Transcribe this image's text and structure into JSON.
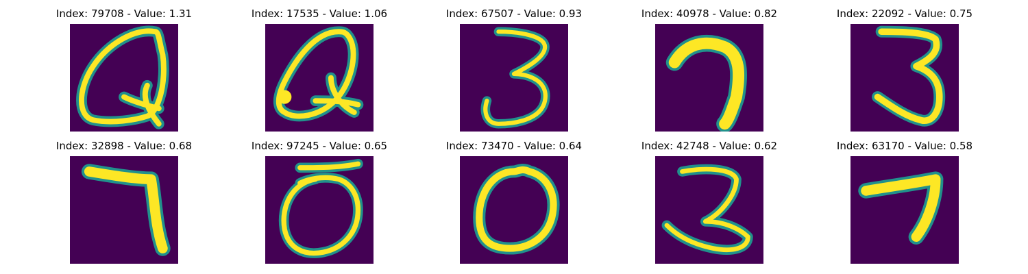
{
  "colors": {
    "background": "#440154",
    "stroke_core": "#fde725",
    "stroke_edge": "#35b779",
    "stroke_mid": "#21918c"
  },
  "panels": [
    {
      "index": "79708",
      "value": "1.31",
      "title": "Index: 79708 - Value: 1.31",
      "digit": "Q"
    },
    {
      "index": "17535",
      "value": "1.06",
      "title": "Index: 17535 - Value: 1.06",
      "digit": "Q"
    },
    {
      "index": "67507",
      "value": "0.93",
      "title": "Index: 67507 - Value: 0.93",
      "digit": "3"
    },
    {
      "index": "40978",
      "value": "0.82",
      "title": "Index: 40978 - Value: 0.82",
      "digit": "7"
    },
    {
      "index": "22092",
      "value": "0.75",
      "title": "Index: 22092 - Value: 0.75",
      "digit": "3"
    },
    {
      "index": "32898",
      "value": "0.68",
      "title": "Index: 32898 - Value: 0.68",
      "digit": "7"
    },
    {
      "index": "97245",
      "value": "0.65",
      "title": "Index: 97245 - Value: 0.65",
      "digit": "5"
    },
    {
      "index": "73470",
      "value": "0.64",
      "title": "Index: 73470 - Value: 0.64",
      "digit": "0"
    },
    {
      "index": "42748",
      "value": "0.62",
      "title": "Index: 42748 - Value: 0.62",
      "digit": "3"
    },
    {
      "index": "63170",
      "value": "0.58",
      "title": "Index: 63170 - Value: 0.58",
      "digit": "7"
    }
  ]
}
